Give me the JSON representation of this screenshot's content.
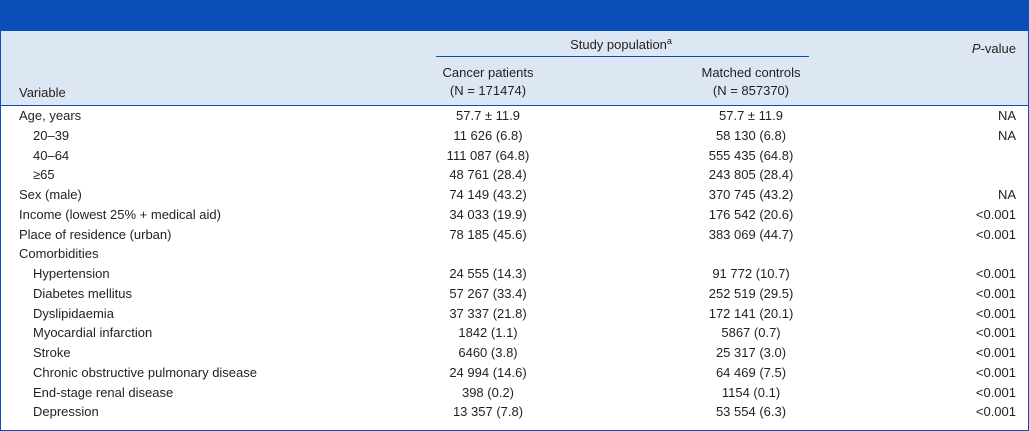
{
  "header": {
    "study_population": "Study population",
    "study_population_note": "a",
    "p_value_italic": "P",
    "p_value_rest": "-value",
    "variable": "Variable",
    "cancer": {
      "label": "Cancer patients",
      "n": "(N = 171474)"
    },
    "controls": {
      "label": "Matched controls",
      "n": "(N = 857370)"
    }
  },
  "rows": [
    {
      "label": "Age, years",
      "cancer": "57.7 ± 11.9",
      "controls": "57.7 ± 11.9",
      "p": "NA",
      "children": [
        {
          "label": "20–39",
          "cancer": "11 626 (6.8)",
          "controls": "58 130 (6.8)",
          "p": "NA"
        },
        {
          "label": "40–64",
          "cancer": "111 087 (64.8)",
          "controls": "555 435 (64.8)"
        },
        {
          "label": "≥65",
          "cancer": "48 761 (28.4)",
          "controls": "243 805 (28.4)"
        }
      ]
    },
    {
      "label": "Sex (male)",
      "cancer": "74 149 (43.2)",
      "controls": "370 745 (43.2)",
      "p": "NA"
    },
    {
      "label": "Income (lowest 25% + medical aid)",
      "cancer": "34 033 (19.9)",
      "controls": "176 542 (20.6)",
      "p": "<0.001"
    },
    {
      "label": "Place of residence (urban)",
      "cancer": "78 185 (45.6)",
      "controls": "383 069 (44.7)",
      "p": "<0.001"
    },
    {
      "label": "Comorbidities",
      "children": [
        {
          "label": "Hypertension",
          "cancer": "24 555 (14.3)",
          "controls": "91 772 (10.7)",
          "p": "<0.001"
        },
        {
          "label": "Diabetes mellitus",
          "cancer": "57 267 (33.4)",
          "controls": "252 519 (29.5)",
          "p": "<0.001"
        },
        {
          "label": "Dyslipidaemia",
          "cancer": "37 337 (21.8)",
          "controls": "172 141 (20.1)",
          "p": "<0.001"
        },
        {
          "label": "Myocardial infarction",
          "cancer": "1842 (1.1)",
          "controls": "5867 (0.7)",
          "p": "<0.001"
        },
        {
          "label": "Stroke",
          "cancer": "6460 (3.8)",
          "controls": "25 317 (3.0)",
          "p": "<0.001"
        },
        {
          "label": "Chronic obstructive pulmonary disease",
          "cancer": "24 994 (14.6)",
          "controls": "64 469 (7.5)",
          "p": "<0.001"
        },
        {
          "label": "End-stage renal disease",
          "cancer": "398 (0.2)",
          "controls": "1154 (0.1)",
          "p": "<0.001"
        },
        {
          "label": "Depression",
          "cancer": "13 357 (7.8)",
          "controls": "53 554 (6.3)",
          "p": "<0.001"
        }
      ]
    }
  ]
}
